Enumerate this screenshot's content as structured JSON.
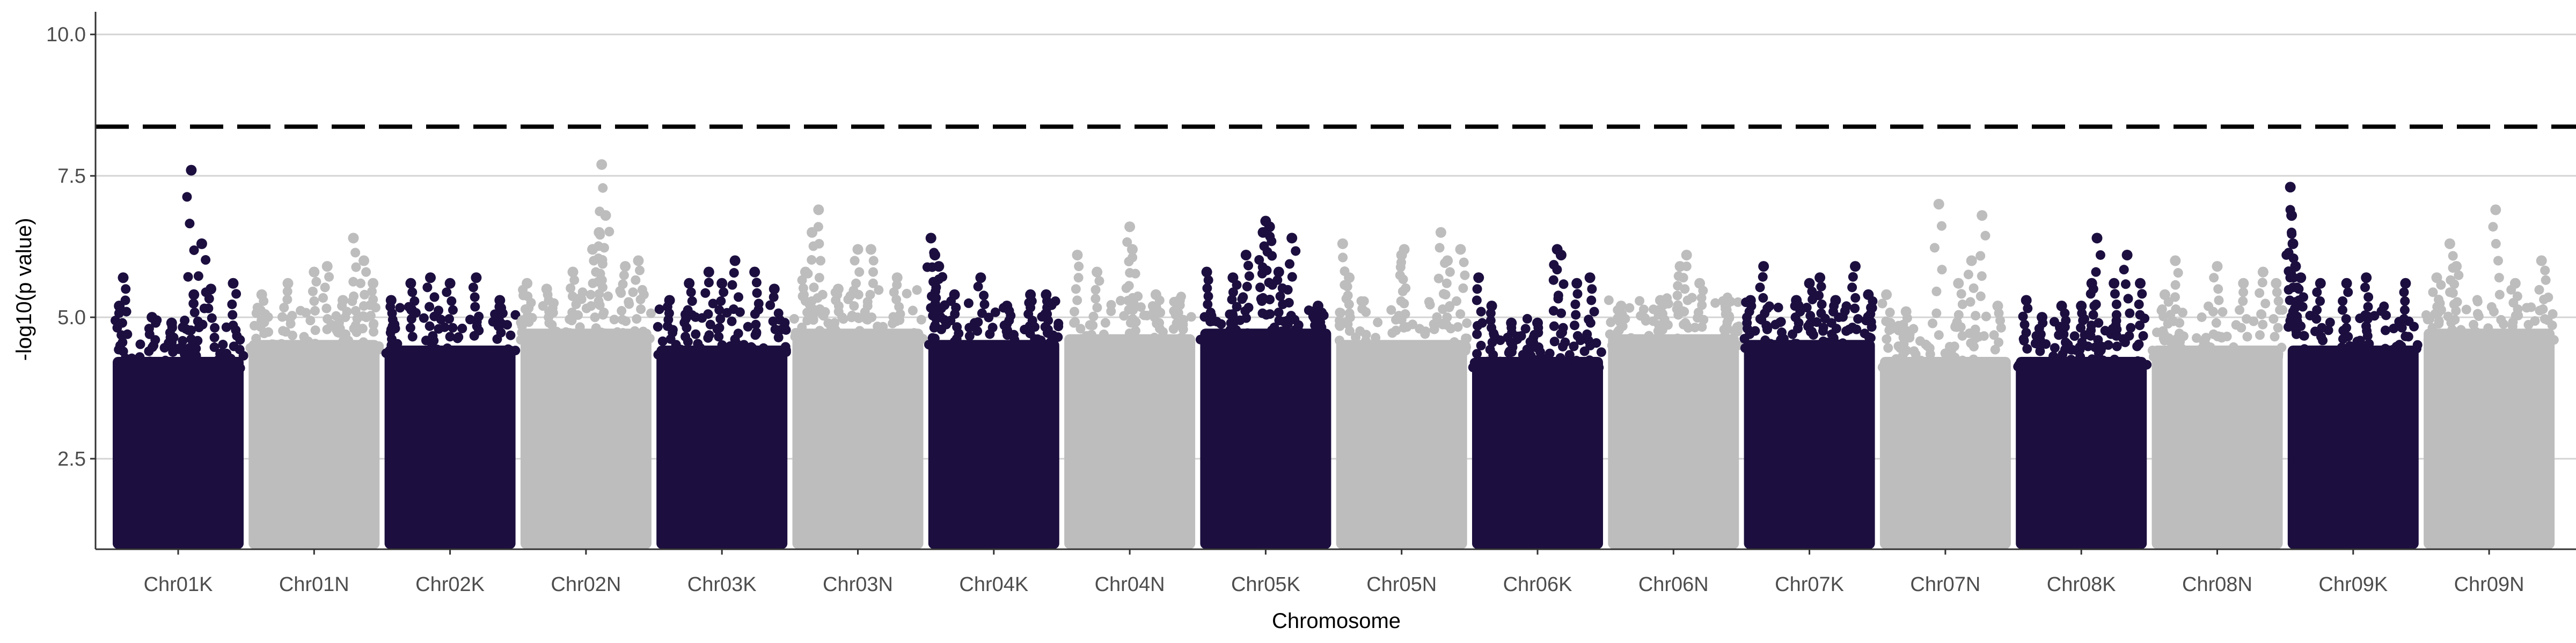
{
  "chart_data": {
    "type": "scatter",
    "subtype": "manhattan",
    "title": "",
    "xlabel": "Chromosome",
    "ylabel": "-log10(p value)",
    "ylim": [
      0.9,
      10.4
    ],
    "yticks": [
      2.5,
      5.0,
      7.5,
      10.0
    ],
    "ytick_labels": [
      "2.5",
      "5.0",
      "7.5",
      "10.0"
    ],
    "grid": "horizontal major lines",
    "legend": "none",
    "threshold": {
      "value": 8.37,
      "style": "dashed",
      "color": "#000000"
    },
    "colors": [
      "#1c0f3f",
      "#bdbdbd"
    ],
    "categories": [
      "Chr01K",
      "Chr01N",
      "Chr02K",
      "Chr02N",
      "Chr03K",
      "Chr03N",
      "Chr04K",
      "Chr04N",
      "Chr05K",
      "Chr05N",
      "Chr06K",
      "Chr06N",
      "Chr07K",
      "Chr07N",
      "Chr08K",
      "Chr08N",
      "Chr09K",
      "Chr09N"
    ],
    "chromosomes": [
      {
        "name": "Chr01K",
        "base_top": 4.3,
        "peaks": [
          [
            0.05,
            5.2
          ],
          [
            0.08,
            5.7
          ],
          [
            0.3,
            5.0
          ],
          [
            0.45,
            4.9
          ],
          [
            0.6,
            7.6
          ],
          [
            0.62,
            5.4
          ],
          [
            0.68,
            6.3
          ],
          [
            0.75,
            5.5
          ],
          [
            0.92,
            5.6
          ]
        ]
      },
      {
        "name": "Chr01N",
        "base_top": 4.6,
        "peaks": [
          [
            0.1,
            5.4
          ],
          [
            0.3,
            5.6
          ],
          [
            0.5,
            5.8
          ],
          [
            0.6,
            5.9
          ],
          [
            0.72,
            5.3
          ],
          [
            0.8,
            6.4
          ],
          [
            0.88,
            6.0
          ],
          [
            0.95,
            5.6
          ]
        ]
      },
      {
        "name": "Chr02K",
        "base_top": 4.5,
        "peaks": [
          [
            0.05,
            5.3
          ],
          [
            0.2,
            5.6
          ],
          [
            0.35,
            5.7
          ],
          [
            0.5,
            5.6
          ],
          [
            0.7,
            5.7
          ],
          [
            0.88,
            5.3
          ]
        ]
      },
      {
        "name": "Chr02N",
        "base_top": 4.8,
        "peaks": [
          [
            0.05,
            5.6
          ],
          [
            0.2,
            5.5
          ],
          [
            0.4,
            5.8
          ],
          [
            0.55,
            6.2
          ],
          [
            0.6,
            6.5
          ],
          [
            0.62,
            7.7
          ],
          [
            0.65,
            6.8
          ],
          [
            0.8,
            5.9
          ],
          [
            0.9,
            6.0
          ]
        ]
      },
      {
        "name": "Chr03K",
        "base_top": 4.5,
        "peaks": [
          [
            0.1,
            5.3
          ],
          [
            0.25,
            5.6
          ],
          [
            0.4,
            5.8
          ],
          [
            0.5,
            5.6
          ],
          [
            0.6,
            6.0
          ],
          [
            0.75,
            5.8
          ],
          [
            0.9,
            5.5
          ]
        ]
      },
      {
        "name": "Chr03N",
        "base_top": 4.8,
        "peaks": [
          [
            0.1,
            5.8
          ],
          [
            0.15,
            6.5
          ],
          [
            0.2,
            6.9
          ],
          [
            0.35,
            5.5
          ],
          [
            0.5,
            6.2
          ],
          [
            0.6,
            6.2
          ],
          [
            0.8,
            5.7
          ]
        ]
      },
      {
        "name": "Chr04K",
        "base_top": 4.6,
        "peaks": [
          [
            0.02,
            6.4
          ],
          [
            0.05,
            6.1
          ],
          [
            0.08,
            5.9
          ],
          [
            0.2,
            5.4
          ],
          [
            0.4,
            5.7
          ],
          [
            0.6,
            5.2
          ],
          [
            0.78,
            5.4
          ],
          [
            0.9,
            5.4
          ]
        ]
      },
      {
        "name": "Chr04N",
        "base_top": 4.7,
        "peaks": [
          [
            0.1,
            6.1
          ],
          [
            0.25,
            5.8
          ],
          [
            0.5,
            6.6
          ],
          [
            0.52,
            6.2
          ],
          [
            0.7,
            5.4
          ],
          [
            0.88,
            5.3
          ]
        ]
      },
      {
        "name": "Chr05K",
        "base_top": 4.8,
        "peaks": [
          [
            0.05,
            5.8
          ],
          [
            0.25,
            5.7
          ],
          [
            0.35,
            6.1
          ],
          [
            0.48,
            6.5
          ],
          [
            0.5,
            6.7
          ],
          [
            0.53,
            6.6
          ],
          [
            0.6,
            5.8
          ],
          [
            0.7,
            6.4
          ],
          [
            0.9,
            5.2
          ]
        ]
      },
      {
        "name": "Chr05N",
        "base_top": 4.6,
        "peaks": [
          [
            0.05,
            6.3
          ],
          [
            0.1,
            5.7
          ],
          [
            0.5,
            6.1
          ],
          [
            0.52,
            6.2
          ],
          [
            0.8,
            6.5
          ],
          [
            0.85,
            6.0
          ],
          [
            0.95,
            6.2
          ]
        ]
      },
      {
        "name": "Chr06K",
        "base_top": 4.3,
        "peaks": [
          [
            0.05,
            5.7
          ],
          [
            0.15,
            5.2
          ],
          [
            0.3,
            4.9
          ],
          [
            0.5,
            4.9
          ],
          [
            0.65,
            6.2
          ],
          [
            0.68,
            6.1
          ],
          [
            0.8,
            5.6
          ],
          [
            0.9,
            5.7
          ]
        ]
      },
      {
        "name": "Chr06N",
        "base_top": 4.7,
        "peaks": [
          [
            0.1,
            5.2
          ],
          [
            0.4,
            5.3
          ],
          [
            0.55,
            5.9
          ],
          [
            0.6,
            6.1
          ],
          [
            0.7,
            5.6
          ],
          [
            0.9,
            5.2
          ]
        ]
      },
      {
        "name": "Chr07K",
        "base_top": 4.6,
        "peaks": [
          [
            0.05,
            5.3
          ],
          [
            0.15,
            5.9
          ],
          [
            0.4,
            5.3
          ],
          [
            0.5,
            5.6
          ],
          [
            0.58,
            5.7
          ],
          [
            0.7,
            5.3
          ],
          [
            0.85,
            5.9
          ],
          [
            0.95,
            5.4
          ]
        ]
      },
      {
        "name": "Chr07N",
        "base_top": 4.3,
        "peaks": [
          [
            0.05,
            5.4
          ],
          [
            0.2,
            5.1
          ],
          [
            0.45,
            7.0
          ],
          [
            0.6,
            5.6
          ],
          [
            0.7,
            6.0
          ],
          [
            0.78,
            6.8
          ],
          [
            0.9,
            5.2
          ]
        ]
      },
      {
        "name": "Chr08K",
        "base_top": 4.3,
        "peaks": [
          [
            0.08,
            5.3
          ],
          [
            0.2,
            5.0
          ],
          [
            0.35,
            5.2
          ],
          [
            0.5,
            5.2
          ],
          [
            0.58,
            5.6
          ],
          [
            0.62,
            6.4
          ],
          [
            0.75,
            5.6
          ],
          [
            0.85,
            6.1
          ],
          [
            0.95,
            5.6
          ]
        ]
      },
      {
        "name": "Chr08N",
        "base_top": 4.5,
        "peaks": [
          [
            0.1,
            5.4
          ],
          [
            0.18,
            6.0
          ],
          [
            0.5,
            5.9
          ],
          [
            0.7,
            5.6
          ],
          [
            0.85,
            5.8
          ],
          [
            0.95,
            5.6
          ]
        ]
      },
      {
        "name": "Chr09K",
        "base_top": 4.5,
        "peaks": [
          [
            0.02,
            7.3
          ],
          [
            0.03,
            6.8
          ],
          [
            0.04,
            6.3
          ],
          [
            0.06,
            5.9
          ],
          [
            0.1,
            5.7
          ],
          [
            0.25,
            5.6
          ],
          [
            0.45,
            5.6
          ],
          [
            0.6,
            5.7
          ],
          [
            0.9,
            5.6
          ]
        ]
      },
      {
        "name": "Chr09N",
        "base_top": 4.8,
        "peaks": [
          [
            0.1,
            5.7
          ],
          [
            0.2,
            6.3
          ],
          [
            0.25,
            5.9
          ],
          [
            0.55,
            6.9
          ],
          [
            0.7,
            5.6
          ],
          [
            0.9,
            6.0
          ]
        ]
      }
    ]
  }
}
